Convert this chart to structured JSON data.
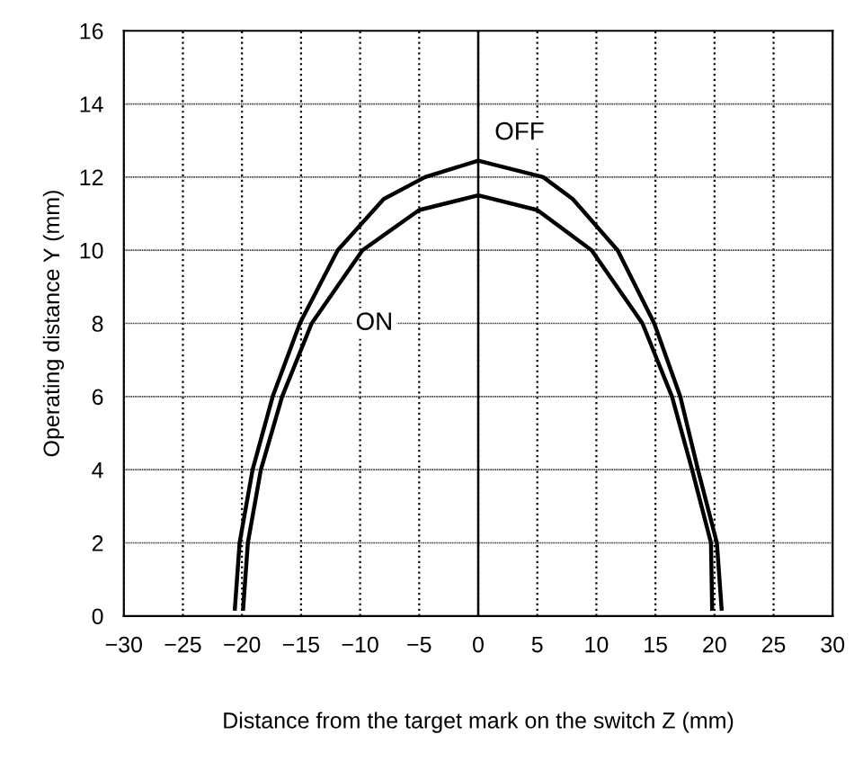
{
  "chart_data": {
    "type": "line",
    "xlabel": "Distance from the target mark on the switch Z (mm)",
    "ylabel": "Operating distance Y (mm)",
    "series": [
      {
        "color": "#000000",
        "x": [
          -20.6,
          -20.2,
          -19.1,
          -17.4,
          -15.1,
          -11.9,
          -8,
          -4.5,
          0,
          5.5,
          8,
          11.8,
          14.9,
          17.1,
          18.6,
          20.2,
          20.6
        ],
        "values": [
          0.2,
          2,
          4,
          6,
          8,
          10,
          11.4,
          12,
          12.45,
          12,
          11.4,
          10,
          8,
          6,
          4,
          2,
          0.2
        ]
      },
      {
        "color": "#000000",
        "x": [
          -19.9,
          -19.5,
          -18.4,
          -16.6,
          -14.1,
          -9.8,
          -5,
          0,
          5,
          9.6,
          13.9,
          16.4,
          18.1,
          19.7,
          19.8
        ],
        "values": [
          0.2,
          2,
          4,
          6,
          8,
          10,
          11.1,
          11.5,
          11.1,
          10,
          8,
          6,
          4,
          2,
          0.2
        ]
      }
    ],
    "annotations": [
      {
        "text": "OFF",
        "x": 3.5,
        "y": 13.2
      },
      {
        "text": "ON",
        "x": -8.8,
        "y": 8
      }
    ],
    "ref_lines": [
      {
        "axis": "x",
        "value": 0,
        "color": "#000000",
        "line_style": "solid"
      }
    ],
    "xlim": [
      -30,
      30
    ],
    "xticks": [
      {
        "value": -30,
        "label": "−30"
      },
      {
        "value": -25,
        "label": "−25"
      },
      {
        "value": -20,
        "label": "−20"
      },
      {
        "value": -15,
        "label": "−15"
      },
      {
        "value": -10,
        "label": "−10"
      },
      {
        "value": -5,
        "label": "−5"
      },
      0,
      5,
      10,
      15,
      20,
      25,
      30
    ],
    "ylim": [
      0,
      16
    ],
    "yticks": [
      0,
      2,
      4,
      6,
      8,
      10,
      12,
      14,
      16
    ],
    "grid": true,
    "marker": "none",
    "line_style": "solid"
  }
}
